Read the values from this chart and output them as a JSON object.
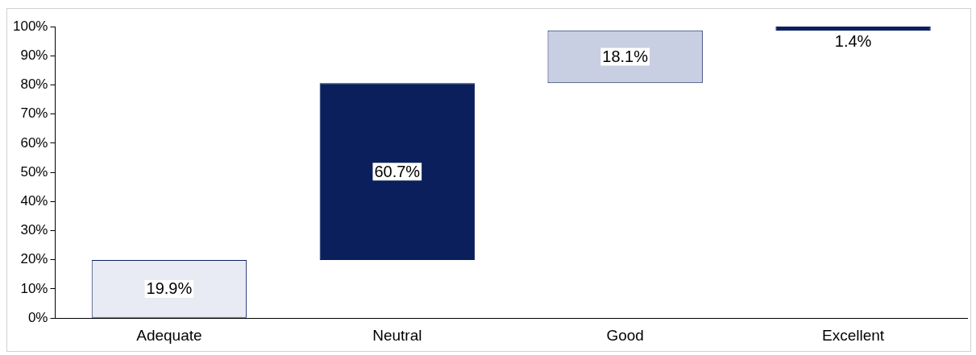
{
  "chart_data": {
    "type": "bar",
    "categories": [
      "Adequate",
      "Neutral",
      "Good",
      "Excellent"
    ],
    "values": [
      19.9,
      60.7,
      18.1,
      1.4
    ],
    "base": [
      0,
      19.9,
      80.6,
      98.6
    ],
    "colors": [
      "#e8ebf3",
      "#0a1f5c",
      "#c9cfe2",
      "#0a1f5c"
    ],
    "value_labels": [
      "19.9%",
      "60.7%",
      "18.1%",
      "1.4%"
    ],
    "ylim": [
      0,
      100
    ],
    "yticks": [
      {
        "value": 0,
        "label": "0%"
      },
      {
        "value": 10,
        "label": "10%"
      },
      {
        "value": 20,
        "label": "20%"
      },
      {
        "value": 30,
        "label": "30%"
      },
      {
        "value": 40,
        "label": "40%"
      },
      {
        "value": 50,
        "label": "50%"
      },
      {
        "value": 60,
        "label": "60%"
      },
      {
        "value": 70,
        "label": "70%"
      },
      {
        "value": 80,
        "label": "80%"
      },
      {
        "value": 90,
        "label": "90%"
      },
      {
        "value": 100,
        "label": "100%"
      }
    ],
    "grid": false,
    "legend": false
  }
}
